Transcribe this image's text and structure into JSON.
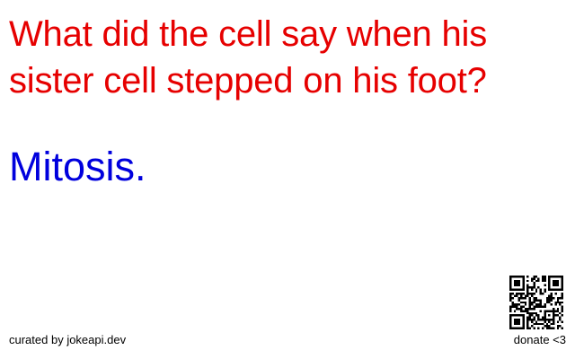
{
  "joke": {
    "setup": "What did the cell say when his sister cell stepped on his foot?",
    "delivery": "Mitosis."
  },
  "footer": {
    "credit": "curated by jokeapi.dev",
    "donate": "donate <3"
  },
  "colors": {
    "setup": "#e60000",
    "delivery": "#0000dd",
    "footer": "#000000"
  },
  "icons": {
    "qr": "qr-code-icon"
  }
}
